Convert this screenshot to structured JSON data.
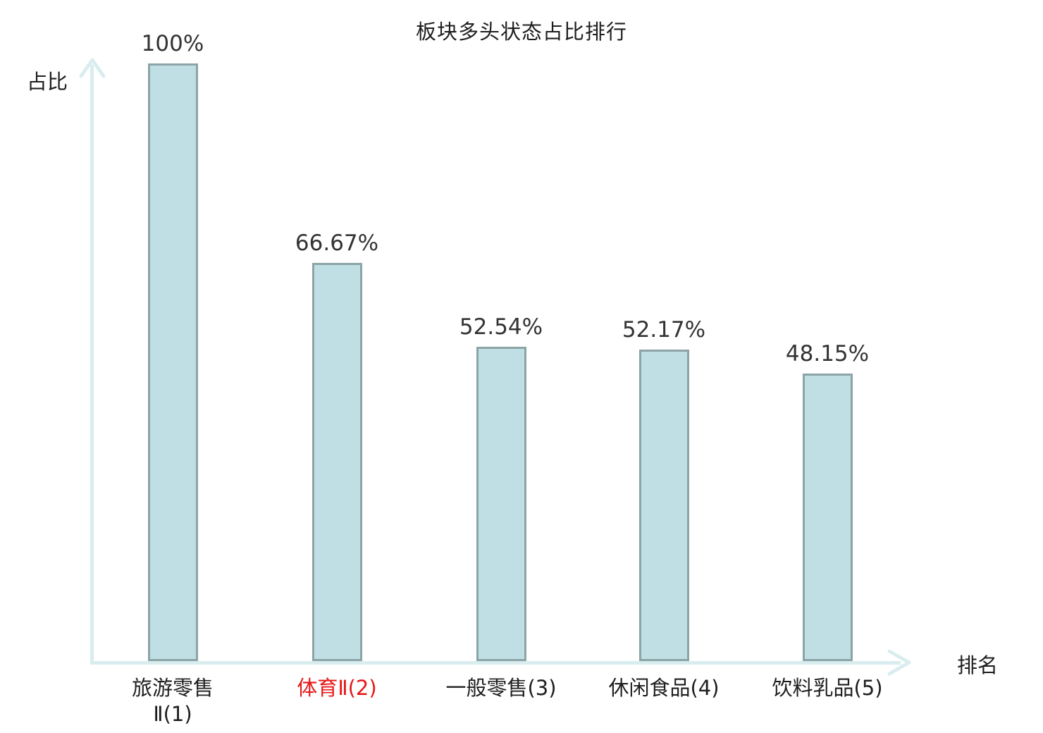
{
  "title": "板块多头状态占比排行",
  "axes": {
    "y_label": "占比",
    "x_label": "排名"
  },
  "colors": {
    "bar_fill": "#bfdfe4",
    "bar_border": "#8da4a6",
    "axis_line": "#d9edef",
    "text": "#1e1e1e",
    "value_text": "#333333",
    "highlight": "#e61717",
    "background": "#ffffff"
  },
  "chart_data": {
    "type": "bar",
    "title": "板块多头状态占比排行",
    "xlabel": "排名",
    "ylabel": "占比",
    "ylim": [
      0,
      100
    ],
    "grid": false,
    "legend": "none",
    "categories": [
      "旅游零售Ⅱ(1)",
      "体育Ⅱ(2)",
      "一般零售(3)",
      "休闲食品(4)",
      "饮料乳品(5)"
    ],
    "category_label_lines": [
      [
        "旅游零售",
        "Ⅱ(1)"
      ],
      [
        "体育Ⅱ(2)"
      ],
      [
        "一般零售(3)"
      ],
      [
        "休闲食品(4)"
      ],
      [
        "饮料乳品(5)"
      ]
    ],
    "values": [
      100,
      66.67,
      52.54,
      52.17,
      48.15
    ],
    "value_labels": [
      "100%",
      "66.67%",
      "52.54%",
      "52.17%",
      "48.15%"
    ],
    "highlighted_category_index": 1,
    "ranks": [
      1,
      2,
      3,
      4,
      5
    ]
  }
}
